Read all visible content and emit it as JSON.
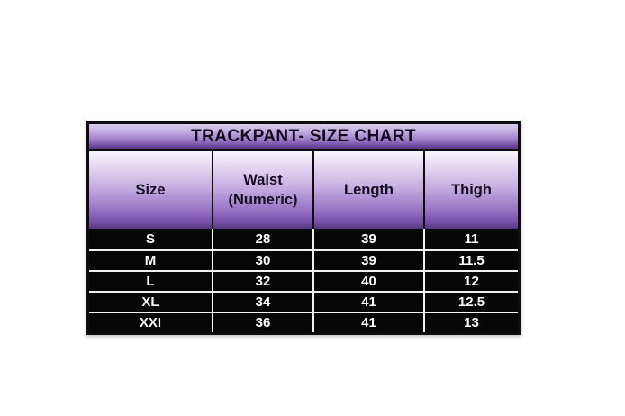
{
  "page": {
    "background_color": "#ffffff"
  },
  "colors": {
    "table_border": "#0d0d0d",
    "title_gradient_top": "#d9cdee",
    "title_gradient_bottom": "#523179",
    "header_gradient_top": "#f7f3fb",
    "header_gradient_bottom": "#57367f",
    "data_row_background": "#070707",
    "data_text": "#ffffff",
    "row_separator": "#f2f2f2",
    "title_text": "#120a1e"
  },
  "chart_data": {
    "type": "table",
    "title": "TRACKPANT- SIZE CHART",
    "columns": [
      "Size",
      "Waist (Numeric)",
      "Length",
      "Thigh"
    ],
    "rows": [
      [
        "S",
        "28",
        "39",
        "11"
      ],
      [
        "M",
        "30",
        "39",
        "11.5"
      ],
      [
        "L",
        "32",
        "40",
        "12"
      ],
      [
        "XL",
        "34",
        "41",
        "12.5"
      ],
      [
        "XXI",
        "36",
        "41",
        "13"
      ]
    ]
  }
}
